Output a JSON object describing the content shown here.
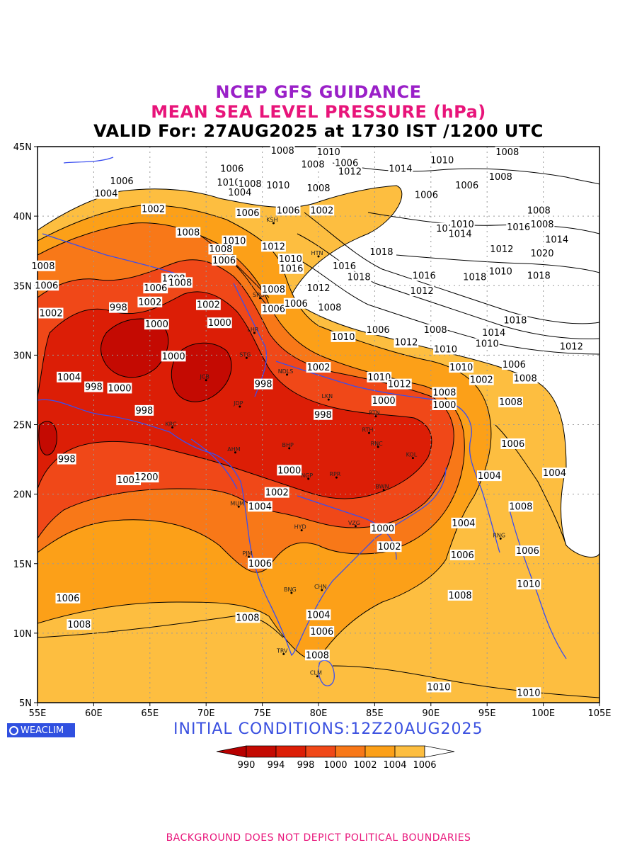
{
  "title": {
    "line1": "NCEP GFS GUIDANCE",
    "line2": "MEAN SEA LEVEL PRESSURE (hPa)",
    "line3": "VALID For: 27AUG2025 at 1730 IST /1200 UTC"
  },
  "map": {
    "lat_ticks": [
      "45N",
      "40N",
      "35N",
      "30N",
      "25N",
      "20N",
      "15N",
      "10N",
      "5N"
    ],
    "lon_ticks": [
      "55E",
      "60E",
      "65E",
      "70E",
      "75E",
      "80E",
      "85E",
      "90E",
      "95E",
      "100E",
      "105E"
    ],
    "cities": [
      {
        "name": "KSH",
        "lon": 76.0,
        "lat": 39.5
      },
      {
        "name": "HTN",
        "lon": 80.0,
        "lat": 37.1
      },
      {
        "name": "LHR",
        "lon": 74.3,
        "lat": 31.6
      },
      {
        "name": "SRG",
        "lon": 74.8,
        "lat": 34.1
      },
      {
        "name": "STG",
        "lon": 73.6,
        "lat": 29.8
      },
      {
        "name": "NDLS",
        "lon": 77.2,
        "lat": 28.6
      },
      {
        "name": "JCB",
        "lon": 70.0,
        "lat": 28.2
      },
      {
        "name": "JDP",
        "lon": 73.0,
        "lat": 26.3
      },
      {
        "name": "LKN",
        "lon": 80.9,
        "lat": 26.8
      },
      {
        "name": "PTN",
        "lon": 85.1,
        "lat": 25.6
      },
      {
        "name": "RTH",
        "lon": 84.5,
        "lat": 24.4
      },
      {
        "name": "KRC",
        "lon": 67.0,
        "lat": 24.8
      },
      {
        "name": "AHM",
        "lon": 72.6,
        "lat": 23.0
      },
      {
        "name": "BHP",
        "lon": 77.4,
        "lat": 23.3
      },
      {
        "name": "RNC",
        "lon": 85.3,
        "lat": 23.4
      },
      {
        "name": "KOL",
        "lon": 88.4,
        "lat": 22.6
      },
      {
        "name": "NGP",
        "lon": 79.1,
        "lat": 21.1
      },
      {
        "name": "RPR",
        "lon": 81.6,
        "lat": 21.2
      },
      {
        "name": "BWN",
        "lon": 85.8,
        "lat": 20.3
      },
      {
        "name": "MUM",
        "lon": 72.9,
        "lat": 19.1
      },
      {
        "name": "HYD",
        "lon": 78.5,
        "lat": 17.4
      },
      {
        "name": "VZG",
        "lon": 83.3,
        "lat": 17.7
      },
      {
        "name": "RNG",
        "lon": 96.2,
        "lat": 16.8
      },
      {
        "name": "PJM",
        "lon": 73.8,
        "lat": 15.5
      },
      {
        "name": "CHN",
        "lon": 80.3,
        "lat": 13.1
      },
      {
        "name": "BNG",
        "lon": 77.6,
        "lat": 12.9
      },
      {
        "name": "TRV",
        "lon": 76.9,
        "lat": 8.5
      },
      {
        "name": "CLM",
        "lon": 79.9,
        "lat": 6.9
      }
    ],
    "contour_labels": [
      {
        "text": "1008",
        "lon": 76.8,
        "lat": 44.7
      },
      {
        "text": "1010",
        "lon": 80.9,
        "lat": 44.6
      },
      {
        "text": "1008",
        "lon": 96.8,
        "lat": 44.6
      },
      {
        "text": "1006",
        "lon": 72.3,
        "lat": 43.4
      },
      {
        "text": "1008",
        "lon": 79.5,
        "lat": 43.7
      },
      {
        "text": "1006",
        "lon": 82.5,
        "lat": 43.8
      },
      {
        "text": "1012",
        "lon": 82.8,
        "lat": 43.2
      },
      {
        "text": "1014",
        "lon": 87.3,
        "lat": 43.4
      },
      {
        "text": "1010",
        "lon": 91.0,
        "lat": 44.0
      },
      {
        "text": "1006",
        "lon": 62.5,
        "lat": 42.5
      },
      {
        "text": "1010",
        "lon": 72.0,
        "lat": 42.4
      },
      {
        "text": "1008",
        "lon": 73.9,
        "lat": 42.3
      },
      {
        "text": "1010",
        "lon": 76.4,
        "lat": 42.2
      },
      {
        "text": "1008",
        "lon": 80.0,
        "lat": 42.0
      },
      {
        "text": "1006",
        "lon": 93.2,
        "lat": 42.2
      },
      {
        "text": "1008",
        "lon": 96.2,
        "lat": 42.8
      },
      {
        "text": "1004",
        "lon": 61.1,
        "lat": 41.6
      },
      {
        "text": "1004",
        "lon": 73.0,
        "lat": 41.7
      },
      {
        "text": "1006",
        "lon": 89.6,
        "lat": 41.5
      },
      {
        "text": "1002",
        "lon": 65.3,
        "lat": 40.5
      },
      {
        "text": "1006",
        "lon": 73.7,
        "lat": 40.2
      },
      {
        "text": "1006",
        "lon": 77.3,
        "lat": 40.4
      },
      {
        "text": "1002",
        "lon": 80.3,
        "lat": 40.4
      },
      {
        "text": "1008",
        "lon": 99.6,
        "lat": 40.4
      },
      {
        "text": "1012",
        "lon": 91.5,
        "lat": 39.1
      },
      {
        "text": "1010",
        "lon": 92.8,
        "lat": 39.4
      },
      {
        "text": "1014",
        "lon": 92.6,
        "lat": 38.7
      },
      {
        "text": "1016",
        "lon": 97.8,
        "lat": 39.2
      },
      {
        "text": "1008",
        "lon": 99.9,
        "lat": 39.4
      },
      {
        "text": "1008",
        "lon": 68.4,
        "lat": 38.8
      },
      {
        "text": "1010",
        "lon": 72.5,
        "lat": 38.2
      },
      {
        "text": "1012",
        "lon": 76.0,
        "lat": 37.8
      },
      {
        "text": "1014",
        "lon": 101.2,
        "lat": 38.3
      },
      {
        "text": "1008",
        "lon": 71.3,
        "lat": 37.6
      },
      {
        "text": "1012",
        "lon": 96.3,
        "lat": 37.6
      },
      {
        "text": "1020",
        "lon": 99.9,
        "lat": 37.3
      },
      {
        "text": "1018",
        "lon": 85.6,
        "lat": 37.4
      },
      {
        "text": "1006",
        "lon": 71.6,
        "lat": 36.8
      },
      {
        "text": "1010",
        "lon": 77.5,
        "lat": 36.9
      },
      {
        "text": "1008",
        "lon": 55.5,
        "lat": 36.4
      },
      {
        "text": "1016",
        "lon": 77.6,
        "lat": 36.2
      },
      {
        "text": "1016",
        "lon": 82.3,
        "lat": 36.4
      },
      {
        "text": "1010",
        "lon": 96.2,
        "lat": 36.0
      },
      {
        "text": "1018",
        "lon": 99.6,
        "lat": 35.7
      },
      {
        "text": "1008",
        "lon": 67.1,
        "lat": 35.5
      },
      {
        "text": "1008",
        "lon": 67.7,
        "lat": 35.2
      },
      {
        "text": "1018",
        "lon": 83.6,
        "lat": 35.6
      },
      {
        "text": "1016",
        "lon": 89.4,
        "lat": 35.7
      },
      {
        "text": "1018",
        "lon": 93.9,
        "lat": 35.6
      },
      {
        "text": "1006",
        "lon": 55.8,
        "lat": 35.0
      },
      {
        "text": "1006",
        "lon": 65.5,
        "lat": 34.8
      },
      {
        "text": "1008",
        "lon": 76.0,
        "lat": 34.7
      },
      {
        "text": "1012",
        "lon": 80.0,
        "lat": 34.8
      },
      {
        "text": "1012",
        "lon": 89.2,
        "lat": 34.6
      },
      {
        "text": "998",
        "lon": 62.2,
        "lat": 33.4
      },
      {
        "text": "1002",
        "lon": 65.0,
        "lat": 33.8
      },
      {
        "text": "1002",
        "lon": 70.2,
        "lat": 33.6
      },
      {
        "text": "1006",
        "lon": 76.0,
        "lat": 33.3
      },
      {
        "text": "1006",
        "lon": 78.0,
        "lat": 33.7
      },
      {
        "text": "1008",
        "lon": 81.0,
        "lat": 33.4
      },
      {
        "text": "1018",
        "lon": 97.5,
        "lat": 32.5
      },
      {
        "text": "1002",
        "lon": 56.2,
        "lat": 33.0
      },
      {
        "text": "1000",
        "lon": 65.6,
        "lat": 32.2
      },
      {
        "text": "1000",
        "lon": 71.2,
        "lat": 32.3
      },
      {
        "text": "1006",
        "lon": 85.3,
        "lat": 31.8
      },
      {
        "text": "1008",
        "lon": 90.4,
        "lat": 31.8
      },
      {
        "text": "1014",
        "lon": 95.6,
        "lat": 31.6
      },
      {
        "text": "1010",
        "lon": 82.2,
        "lat": 31.3
      },
      {
        "text": "1012",
        "lon": 87.8,
        "lat": 30.9
      },
      {
        "text": "1010",
        "lon": 95.0,
        "lat": 30.8
      },
      {
        "text": "1012",
        "lon": 102.5,
        "lat": 30.6
      },
      {
        "text": "1000",
        "lon": 67.1,
        "lat": 29.9
      },
      {
        "text": "1010",
        "lon": 91.3,
        "lat": 30.4
      },
      {
        "text": "1002",
        "lon": 80.0,
        "lat": 29.1
      },
      {
        "text": "1010",
        "lon": 85.4,
        "lat": 28.4
      },
      {
        "text": "1006",
        "lon": 97.4,
        "lat": 29.3
      },
      {
        "text": "1008",
        "lon": 98.4,
        "lat": 28.3
      },
      {
        "text": "1010",
        "lon": 92.7,
        "lat": 29.1
      },
      {
        "text": "1002",
        "lon": 94.5,
        "lat": 28.2
      },
      {
        "text": "1012",
        "lon": 87.2,
        "lat": 27.9
      },
      {
        "text": "1004",
        "lon": 57.8,
        "lat": 28.4
      },
      {
        "text": "998",
        "lon": 75.1,
        "lat": 27.9
      },
      {
        "text": "998",
        "lon": 60.0,
        "lat": 27.7
      },
      {
        "text": "1000",
        "lon": 62.3,
        "lat": 27.6
      },
      {
        "text": "1008",
        "lon": 91.2,
        "lat": 27.3
      },
      {
        "text": "1000",
        "lon": 85.8,
        "lat": 26.7
      },
      {
        "text": "1000",
        "lon": 91.2,
        "lat": 26.4
      },
      {
        "text": "1008",
        "lon": 97.1,
        "lat": 26.6
      },
      {
        "text": "998",
        "lon": 64.5,
        "lat": 26.0
      },
      {
        "text": "998",
        "lon": 80.4,
        "lat": 25.7
      },
      {
        "text": "1006",
        "lon": 97.3,
        "lat": 23.6
      },
      {
        "text": "998",
        "lon": 57.6,
        "lat": 22.5
      },
      {
        "text": "1000",
        "lon": 77.4,
        "lat": 21.7
      },
      {
        "text": "1004",
        "lon": 101.0,
        "lat": 21.5
      },
      {
        "text": "1004",
        "lon": 95.2,
        "lat": 21.3
      },
      {
        "text": "1002",
        "lon": 63.1,
        "lat": 21.0
      },
      {
        "text": "1200",
        "lon": 64.7,
        "lat": 21.2
      },
      {
        "text": "1002",
        "lon": 76.3,
        "lat": 20.1
      },
      {
        "text": "1004",
        "lon": 74.8,
        "lat": 19.1
      },
      {
        "text": "1008",
        "lon": 98.0,
        "lat": 19.1
      },
      {
        "text": "1000",
        "lon": 85.7,
        "lat": 17.5
      },
      {
        "text": "1004",
        "lon": 92.9,
        "lat": 17.9
      },
      {
        "text": "1002",
        "lon": 86.3,
        "lat": 16.2
      },
      {
        "text": "1006",
        "lon": 98.6,
        "lat": 15.9
      },
      {
        "text": "1006",
        "lon": 92.8,
        "lat": 15.6
      },
      {
        "text": "1006",
        "lon": 74.8,
        "lat": 15.0
      },
      {
        "text": "1010",
        "lon": 98.7,
        "lat": 13.5
      },
      {
        "text": "1008",
        "lon": 92.6,
        "lat": 12.7
      },
      {
        "text": "1006",
        "lon": 57.7,
        "lat": 12.5
      },
      {
        "text": "1004",
        "lon": 80.0,
        "lat": 11.3
      },
      {
        "text": "1008",
        "lon": 73.7,
        "lat": 11.1
      },
      {
        "text": "1008",
        "lon": 58.7,
        "lat": 10.6
      },
      {
        "text": "1006",
        "lon": 80.3,
        "lat": 10.1
      },
      {
        "text": "1008",
        "lon": 79.9,
        "lat": 8.4
      },
      {
        "text": "1010",
        "lon": 90.7,
        "lat": 6.1
      },
      {
        "text": "1010",
        "lon": 98.7,
        "lat": 5.7
      }
    ]
  },
  "colorbar": {
    "levels": [
      "990",
      "994",
      "998",
      "1000",
      "1002",
      "1004",
      "1006"
    ],
    "colors": [
      "#b80000",
      "#c40a02",
      "#dc1e06",
      "#f04818",
      "#f87818",
      "#fca018",
      "#fdbe40",
      "#ffffff"
    ]
  },
  "logo_text": "WEACLIM",
  "initial_conditions": "INITIAL  CONDITIONS:12Z20AUG2025",
  "footer": "BACKGROUND DOES NOT DEPICT POLITICAL BOUNDARIES"
}
